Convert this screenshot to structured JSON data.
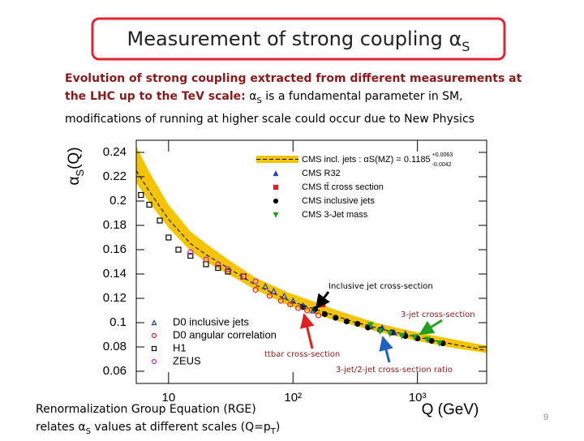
{
  "slide_title": {
    "text": "Measurement of strong coupling α",
    "sub": "S"
  },
  "description": {
    "highlight": "Evolution of strong coupling extracted from different measurements at the LHC up to the TeV scale:",
    "symbol": "α",
    "sub": "S",
    "rest": "is a fundamental parameter in SM, modifications of running at higher scale could occur due to New Physics"
  },
  "chart_data": {
    "type": "scatter",
    "xlabel": "Q (GeV)",
    "ylabel": {
      "symbol": "α",
      "sub": "S",
      "rest": "(Q)"
    },
    "xlim": [
      5.5,
      3600
    ],
    "log_x": true,
    "xticks": [
      10,
      {
        "value": 100,
        "label": "10²"
      },
      {
        "value": 1000,
        "label": "10³"
      }
    ],
    "ylim": [
      0.05,
      0.25
    ],
    "yticks": [
      0.06,
      0.08,
      0.1,
      0.12,
      0.14,
      0.16,
      0.18,
      0.2,
      0.22,
      0.24
    ],
    "band": {
      "name": "CMS incl. jets : αS(MZ) = 0.1185",
      "err_up": "+0.0063",
      "err_down": "-0.0042",
      "color": "#f5c400",
      "x": [
        5.5,
        7,
        10,
        15,
        20,
        30,
        50,
        91.2,
        150,
        200,
        300,
        500,
        1000,
        2000,
        3600
      ],
      "center": [
        0.225,
        0.208,
        0.185,
        0.165,
        0.156,
        0.145,
        0.131,
        0.1185,
        0.111,
        0.107,
        0.101,
        0.095,
        0.088,
        0.082,
        0.077
      ],
      "upper": [
        0.245,
        0.224,
        0.197,
        0.175,
        0.165,
        0.152,
        0.137,
        0.1248,
        0.117,
        0.112,
        0.106,
        0.099,
        0.092,
        0.086,
        0.081
      ],
      "lower": [
        0.215,
        0.199,
        0.178,
        0.159,
        0.15,
        0.14,
        0.127,
        0.1143,
        0.107,
        0.103,
        0.098,
        0.092,
        0.085,
        0.079,
        0.075
      ]
    },
    "series": [
      {
        "name": "CMS R32",
        "color": "#2040c0",
        "marker": "triangle-up",
        "filled": true,
        "legend": "top",
        "x": [
          420,
          520,
          650,
          800,
          1000
        ],
        "values": [
          0.097,
          0.096,
          0.092,
          0.091,
          0.088
        ]
      },
      {
        "name": "CMS tt̄ cross section",
        "color": "#e02020",
        "marker": "square",
        "filled": true,
        "legend": "top",
        "x": [
          173
        ],
        "values": [
          0.115
        ]
      },
      {
        "name": "CMS inclusive jets",
        "color": "#000000",
        "marker": "circle",
        "filled": true,
        "legend": "top",
        "x": [
          120,
          150,
          180,
          220,
          270,
          330,
          400,
          500,
          620,
          800,
          1000,
          1300,
          1600
        ],
        "values": [
          0.113,
          0.111,
          0.107,
          0.104,
          0.101,
          0.099,
          0.096,
          0.094,
          0.092,
          0.089,
          0.087,
          0.085,
          0.083
        ]
      },
      {
        "name": "CMS 3-Jet mass",
        "color": "#20a020",
        "marker": "triangle-down",
        "filled": true,
        "legend": "top",
        "x": [
          420,
          500,
          600,
          750,
          950,
          1200,
          1500
        ],
        "values": [
          0.098,
          0.093,
          0.091,
          0.089,
          0.088,
          0.086,
          0.083
        ]
      },
      {
        "name": "D0 inclusive jets",
        "color": "#2040c0",
        "marker": "triangle-up",
        "filled": false,
        "legend": "bottom",
        "x": [
          60,
          70,
          85,
          100,
          120,
          145
        ],
        "values": [
          0.13,
          0.126,
          0.122,
          0.118,
          0.114,
          0.11
        ]
      },
      {
        "name": "D0 angular correlation",
        "color": "#e02020",
        "marker": "circle",
        "filled": false,
        "legend": "bottom",
        "x": [
          50,
          65,
          80,
          95,
          110,
          130,
          160
        ],
        "values": [
          0.127,
          0.122,
          0.118,
          0.115,
          0.112,
          0.11,
          0.106
        ]
      },
      {
        "name": "H1",
        "color": "#000000",
        "marker": "square",
        "filled": false,
        "legend": "bottom",
        "x": [
          6,
          7,
          8.5,
          10,
          12,
          15,
          20,
          25,
          30,
          40
        ],
        "values": [
          0.205,
          0.197,
          0.184,
          0.17,
          0.16,
          0.155,
          0.148,
          0.145,
          0.142,
          0.138
        ]
      },
      {
        "name": "ZEUS",
        "color": "#d020d0",
        "marker": "circle",
        "filled": false,
        "legend": "bottom",
        "x": [
          15,
          20,
          25,
          30,
          40,
          50
        ],
        "values": [
          0.158,
          0.152,
          0.148,
          0.144,
          0.138,
          0.134
        ]
      }
    ]
  },
  "annotations": [
    "Inclusive jet cross-section",
    "3-jet cross-section",
    "ttbar cross-section",
    "3-jet/2-jet cross-section ratio"
  ],
  "footer": {
    "line1": "Renormalization Group Equation (RGE)",
    "line2a": "relates α",
    "sub1": "S",
    "line2b": "values at different scales (Q=p",
    "sub2": "T",
    "line2c": ")"
  },
  "page_number": "9"
}
